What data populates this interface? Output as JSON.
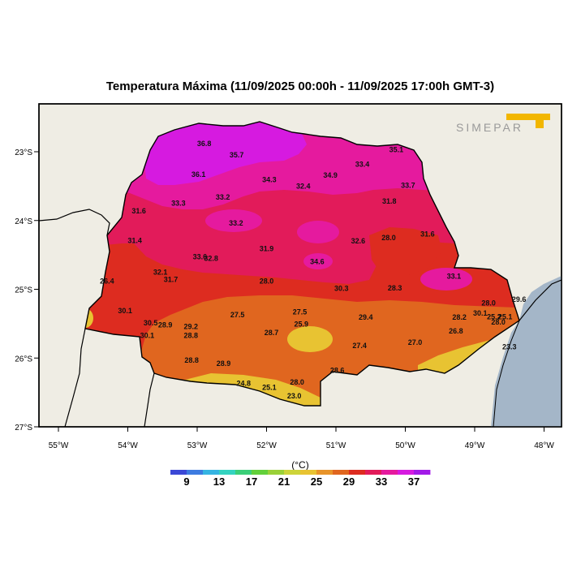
{
  "title": "Temperatura Máxima (11/09/2025 00:00h - 11/09/2025 17:00h GMT-3)",
  "logo_text": "SIMEPAR",
  "colors": {
    "land": "#efede4",
    "ocean": "#a4b6c8",
    "logo_accent": "#f2b600"
  },
  "map": {
    "lon_range": [
      -55.3,
      -47.7
    ],
    "lat_range": [
      -27.0,
      -22.4
    ],
    "x_ticks": [
      "55°W",
      "54°W",
      "53°W",
      "52°W",
      "51°W",
      "50°W",
      "49°W",
      "48°W"
    ],
    "x_tick_values": [
      -55,
      -54,
      -53,
      -52,
      -51,
      -50,
      -49,
      -48
    ],
    "y_ticks": [
      "23°S",
      "24°S",
      "25°S",
      "26°S",
      "27°S"
    ],
    "y_tick_values": [
      -23,
      -24,
      -25,
      -26,
      -27
    ]
  },
  "colorbar": {
    "unit": "(°C)",
    "tick_labels": [
      "9",
      "13",
      "17",
      "21",
      "25",
      "29",
      "33",
      "37"
    ],
    "colors": [
      "#3b48d6",
      "#3d7be0",
      "#35b4e2",
      "#34d3c0",
      "#3bcf78",
      "#62d03a",
      "#9ad138",
      "#cdd43a",
      "#e8c332",
      "#e8942a",
      "#e0661f",
      "#dd2c20",
      "#e21b5a",
      "#e51a9e",
      "#d61ae0",
      "#a21ae8"
    ]
  },
  "labels": [
    {
      "t": "36.8",
      "lon": -52.9,
      "lat": -22.88
    },
    {
      "t": "35.7",
      "lon": -52.43,
      "lat": -23.05
    },
    {
      "t": "35.1",
      "lon": -50.13,
      "lat": -22.97
    },
    {
      "t": "36.1",
      "lon": -52.98,
      "lat": -23.33
    },
    {
      "t": "34.3",
      "lon": -51.96,
      "lat": -23.41
    },
    {
      "t": "34.9",
      "lon": -51.08,
      "lat": -23.34
    },
    {
      "t": "33.4",
      "lon": -50.62,
      "lat": -23.18
    },
    {
      "t": "32.4",
      "lon": -51.47,
      "lat": -23.5
    },
    {
      "t": "33.7",
      "lon": -49.96,
      "lat": -23.49
    },
    {
      "t": "33.2",
      "lon": -52.63,
      "lat": -23.66
    },
    {
      "t": "33.3",
      "lon": -53.27,
      "lat": -23.75
    },
    {
      "t": "31.6",
      "lon": -53.84,
      "lat": -23.86
    },
    {
      "t": "31.8",
      "lon": -50.23,
      "lat": -23.72
    },
    {
      "t": "33.2",
      "lon": -52.44,
      "lat": -24.04
    },
    {
      "t": "31.4",
      "lon": -53.9,
      "lat": -24.29
    },
    {
      "t": "32.6",
      "lon": -50.68,
      "lat": -24.3
    },
    {
      "t": "28.0",
      "lon": -50.24,
      "lat": -24.25
    },
    {
      "t": "31.6",
      "lon": -49.68,
      "lat": -24.2
    },
    {
      "t": "31.9",
      "lon": -52.0,
      "lat": -24.41
    },
    {
      "t": "33.6",
      "lon": -52.96,
      "lat": -24.53
    },
    {
      "t": "32.8",
      "lon": -52.8,
      "lat": -24.55
    },
    {
      "t": "34.6",
      "lon": -51.27,
      "lat": -24.6
    },
    {
      "t": "32.1",
      "lon": -53.53,
      "lat": -24.75
    },
    {
      "t": "31.7",
      "lon": -53.38,
      "lat": -24.86
    },
    {
      "t": "33.1",
      "lon": -49.3,
      "lat": -24.81
    },
    {
      "t": "26.4",
      "lon": -54.3,
      "lat": -24.88
    },
    {
      "t": "28.0",
      "lon": -52.0,
      "lat": -24.88
    },
    {
      "t": "30.3",
      "lon": -50.92,
      "lat": -24.99
    },
    {
      "t": "28.3",
      "lon": -50.15,
      "lat": -24.98
    },
    {
      "t": "30.1",
      "lon": -54.04,
      "lat": -25.31
    },
    {
      "t": "27.5",
      "lon": -52.42,
      "lat": -25.37
    },
    {
      "t": "27.5",
      "lon": -51.52,
      "lat": -25.33
    },
    {
      "t": "29.4",
      "lon": -50.57,
      "lat": -25.41
    },
    {
      "t": "28.0",
      "lon": -48.8,
      "lat": -25.2
    },
    {
      "t": "29.6",
      "lon": -48.36,
      "lat": -25.15
    },
    {
      "t": "30.1",
      "lon": -48.92,
      "lat": -25.35
    },
    {
      "t": "25.2",
      "lon": -48.72,
      "lat": -25.4
    },
    {
      "t": "25.1",
      "lon": -48.56,
      "lat": -25.4
    },
    {
      "t": "28.2",
      "lon": -49.22,
      "lat": -25.41
    },
    {
      "t": "28.0",
      "lon": -48.66,
      "lat": -25.48
    },
    {
      "t": "30.5",
      "lon": -53.67,
      "lat": -25.49
    },
    {
      "t": "28.9",
      "lon": -53.46,
      "lat": -25.52
    },
    {
      "t": "29.2",
      "lon": -53.09,
      "lat": -25.54
    },
    {
      "t": "25.9",
      "lon": -51.5,
      "lat": -25.51
    },
    {
      "t": "28.7",
      "lon": -51.93,
      "lat": -25.63
    },
    {
      "t": "30.1",
      "lon": -53.72,
      "lat": -25.67
    },
    {
      "t": "28.8",
      "lon": -53.09,
      "lat": -25.67
    },
    {
      "t": "26.8",
      "lon": -49.27,
      "lat": -25.61
    },
    {
      "t": "27.0",
      "lon": -49.86,
      "lat": -25.77
    },
    {
      "t": "27.4",
      "lon": -50.66,
      "lat": -25.82
    },
    {
      "t": "23.3",
      "lon": -48.5,
      "lat": -25.84
    },
    {
      "t": "28.8",
      "lon": -53.08,
      "lat": -26.03
    },
    {
      "t": "28.9",
      "lon": -52.62,
      "lat": -26.08
    },
    {
      "t": "28.6",
      "lon": -50.98,
      "lat": -26.18
    },
    {
      "t": "24.8",
      "lon": -52.33,
      "lat": -26.37
    },
    {
      "t": "28.0",
      "lon": -51.56,
      "lat": -26.35
    },
    {
      "t": "25.1",
      "lon": -51.96,
      "lat": -26.43
    },
    {
      "t": "23.0",
      "lon": -51.6,
      "lat": -26.55
    }
  ]
}
